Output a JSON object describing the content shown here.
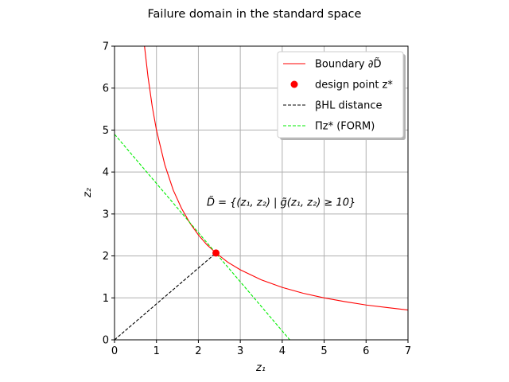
{
  "chart_data": {
    "type": "line",
    "title": "Failure domain in the standard space",
    "xlabel": "z₁",
    "ylabel": "z₂",
    "xlim": [
      0,
      7
    ],
    "ylim": [
      0,
      7
    ],
    "xticks": [
      "0",
      "1",
      "2",
      "3",
      "4",
      "5",
      "6",
      "7"
    ],
    "yticks": [
      "0",
      "1",
      "2",
      "3",
      "4",
      "5",
      "6",
      "7"
    ],
    "grid": true,
    "legend_placement": "upper-right",
    "design_point": {
      "x": 2.42,
      "y": 2.07
    },
    "series": [
      {
        "name": "Boundary ∂D̃",
        "style": "solid-line",
        "color": "#ff0000",
        "x": [
          0.715,
          0.8,
          0.9,
          1.0,
          1.2,
          1.4,
          1.6,
          1.8,
          2.0,
          2.2,
          2.42,
          2.7,
          3.0,
          3.5,
          4.0,
          4.5,
          5.0,
          5.5,
          6.0,
          6.5,
          7.0
        ],
        "y": [
          7.0,
          6.26,
          5.56,
          5.0,
          4.17,
          3.57,
          3.13,
          2.78,
          2.5,
          2.27,
          2.07,
          1.85,
          1.67,
          1.43,
          1.25,
          1.11,
          1.0,
          0.91,
          0.83,
          0.77,
          0.71
        ]
      },
      {
        "name": "design point z*",
        "style": "marker",
        "color": "#ff0000",
        "x": [
          2.42
        ],
        "y": [
          2.07
        ]
      },
      {
        "name": "βHL distance",
        "style": "dashed-line",
        "color": "#000000",
        "x": [
          0,
          2.42
        ],
        "y": [
          0,
          2.07
        ]
      },
      {
        "name": "Πz* (FORM)",
        "style": "dashed-line",
        "color": "#00ee00",
        "x": [
          0,
          4.18
        ],
        "y": [
          4.9,
          0
        ]
      }
    ],
    "annotation": {
      "text": "D̃ = {(z₁, z₂) | g̃(z₁, z₂) ≥ 10}",
      "x": 2.2,
      "y": 3.2
    }
  }
}
